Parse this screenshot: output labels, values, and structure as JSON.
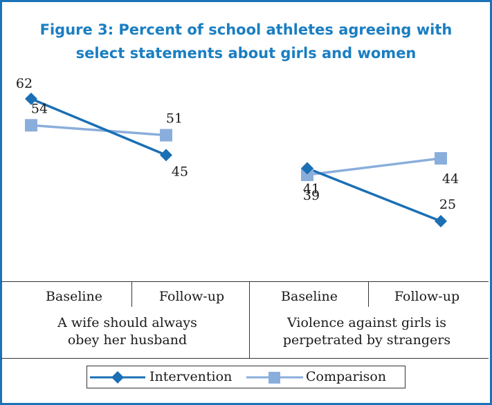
{
  "title_line1": "Figure 3: Percent of school athletes agreeing with",
  "title_line2": "select statements about girls and women",
  "colors": {
    "intervention": "#1a6fb5",
    "comparison": "#8aaedc",
    "title": "#1a7ec2",
    "border": "#1a72b8"
  },
  "chart_data": {
    "type": "line",
    "title": "Figure 3: Percent of school athletes agreeing with select statements about girls and women",
    "grid": false,
    "legend": "bottom",
    "ylim": [
      0,
      70
    ],
    "groups": [
      {
        "label": "A wife should always obey her husband",
        "label_lines": [
          "A wife should always",
          "obey her husband"
        ],
        "x": [
          "Baseline",
          "Follow-up"
        ]
      },
      {
        "label": "Violence against girls is perpetrated by strangers",
        "label_lines": [
          "Violence against girls is",
          "perpetrated by strangers"
        ],
        "x": [
          "Baseline",
          "Follow-up"
        ]
      }
    ],
    "series": [
      {
        "name": "Intervention",
        "marker": "diamond",
        "values": [
          [
            62,
            45
          ],
          [
            41,
            25
          ]
        ]
      },
      {
        "name": "Comparison",
        "marker": "square",
        "values": [
          [
            54,
            51
          ],
          [
            39,
            44
          ]
        ]
      }
    ]
  }
}
